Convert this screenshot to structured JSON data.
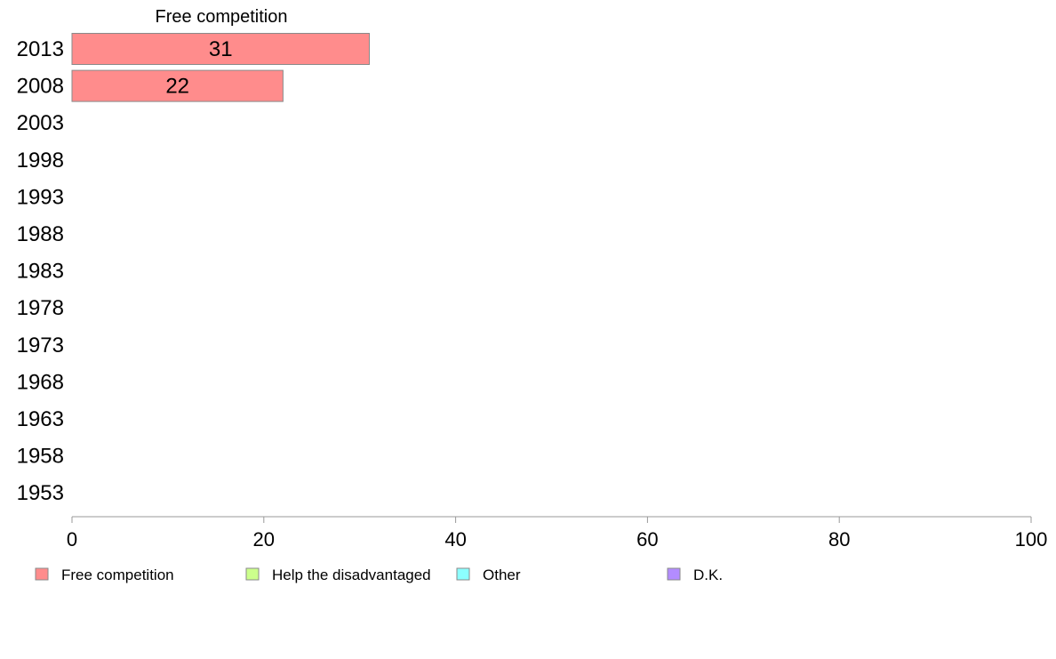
{
  "chart_data": {
    "type": "bar",
    "orientation": "horizontal",
    "stacked": true,
    "categories": [
      "2013",
      "2008",
      "2003",
      "1998",
      "1993",
      "1988",
      "1983",
      "1978",
      "1973",
      "1968",
      "1963",
      "1958",
      "1953"
    ],
    "series": [
      {
        "name": "Free competition",
        "color": "#ff8c8c",
        "values": [
          31,
          22,
          null,
          null,
          null,
          null,
          null,
          null,
          null,
          null,
          null,
          null,
          null
        ]
      },
      {
        "name": "Help the disadvantaged",
        "color": "#ccff8c",
        "values": [
          null,
          null,
          null,
          null,
          null,
          null,
          null,
          null,
          null,
          null,
          null,
          null,
          null
        ]
      },
      {
        "name": "Other",
        "color": "#8cffff",
        "values": [
          null,
          null,
          null,
          null,
          null,
          null,
          null,
          null,
          null,
          null,
          null,
          null,
          null
        ]
      },
      {
        "name": "D.K.",
        "color": "#b38cff",
        "values": [
          null,
          null,
          null,
          null,
          null,
          null,
          null,
          null,
          null,
          null,
          null,
          null,
          null
        ]
      }
    ],
    "column_label": "Free competition",
    "xlim": [
      0,
      100
    ],
    "xticks": [
      "0",
      "20",
      "40",
      "60",
      "80",
      "100"
    ],
    "grid": false,
    "legend_position": "bottom"
  }
}
